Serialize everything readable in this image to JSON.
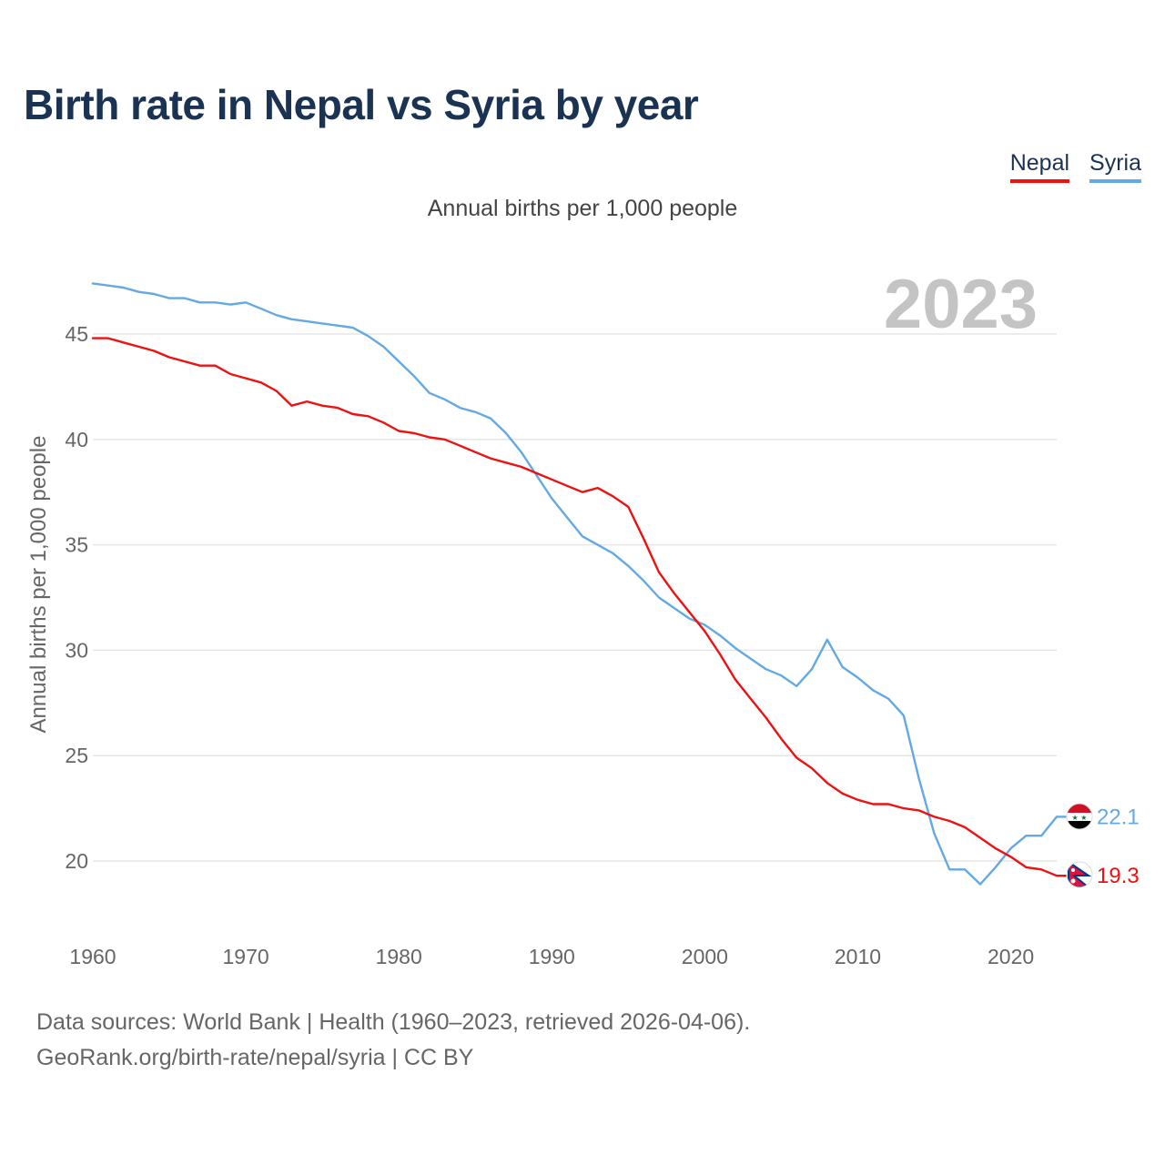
{
  "title": "Birth rate in Nepal vs Syria by year",
  "subtitle": "Annual births per 1,000 people",
  "legend": [
    {
      "label": "Nepal",
      "color": "#ee1111"
    },
    {
      "label": "Syria",
      "color": "#64a8e4"
    }
  ],
  "footer": {
    "line1": "Data sources: World Bank | Health (1960–2023, retrieved 2026-04-06).",
    "line2": "GeoRank.org/birth-rate/nepal/syria | CC BY"
  },
  "chart_data": {
    "type": "line",
    "title": "Birth rate in Nepal vs Syria by year",
    "ylabel": "Annual births per 1,000 people",
    "xlabel": "",
    "year_label": "2023",
    "xlim": [
      1960,
      2023
    ],
    "ylim": [
      17,
      48
    ],
    "x_ticks": [
      "1960",
      "1970",
      "1980",
      "1990",
      "2000",
      "2010",
      "2020"
    ],
    "y_ticks": [
      "20",
      "25",
      "30",
      "35",
      "40",
      "45"
    ],
    "grid": true,
    "x": [
      1960,
      1961,
      1962,
      1963,
      1964,
      1965,
      1966,
      1967,
      1968,
      1969,
      1970,
      1971,
      1972,
      1973,
      1974,
      1975,
      1976,
      1977,
      1978,
      1979,
      1980,
      1981,
      1982,
      1983,
      1984,
      1985,
      1986,
      1987,
      1988,
      1989,
      1990,
      1991,
      1992,
      1993,
      1994,
      1995,
      1996,
      1997,
      1998,
      1999,
      2000,
      2001,
      2002,
      2003,
      2004,
      2005,
      2006,
      2007,
      2008,
      2009,
      2010,
      2011,
      2012,
      2013,
      2014,
      2015,
      2016,
      2017,
      2018,
      2019,
      2020,
      2021,
      2022,
      2023
    ],
    "series": [
      {
        "name": "Nepal",
        "color": "#ee1111",
        "end_label": "19.3",
        "values": [
          44.8,
          44.8,
          44.6,
          44.4,
          44.2,
          43.9,
          43.7,
          43.5,
          43.5,
          43.1,
          42.9,
          42.7,
          42.3,
          41.6,
          41.8,
          41.6,
          41.5,
          41.2,
          41.1,
          40.8,
          40.4,
          40.3,
          40.1,
          40.0,
          39.7,
          39.4,
          39.1,
          38.9,
          38.7,
          38.4,
          38.1,
          37.8,
          37.5,
          37.7,
          37.3,
          36.8,
          35.3,
          33.7,
          32.7,
          31.8,
          30.9,
          29.8,
          28.6,
          27.7,
          26.8,
          25.8,
          24.9,
          24.4,
          23.7,
          23.2,
          22.9,
          22.7,
          22.7,
          22.5,
          22.4,
          22.1,
          21.9,
          21.6,
          21.1,
          20.6,
          20.2,
          19.7,
          19.6,
          19.3
        ]
      },
      {
        "name": "Syria",
        "color": "#64a8e4",
        "end_label": "22.1",
        "values": [
          47.4,
          47.3,
          47.2,
          47.0,
          46.9,
          46.7,
          46.7,
          46.5,
          46.5,
          46.4,
          46.5,
          46.2,
          45.9,
          45.7,
          45.6,
          45.5,
          45.4,
          45.3,
          44.9,
          44.4,
          43.7,
          43.0,
          42.2,
          41.9,
          41.5,
          41.3,
          41.0,
          40.3,
          39.4,
          38.3,
          37.2,
          36.3,
          35.4,
          35.0,
          34.6,
          34.0,
          33.3,
          32.5,
          32.0,
          31.5,
          31.2,
          30.7,
          30.1,
          29.6,
          29.1,
          28.8,
          28.3,
          29.1,
          30.5,
          29.2,
          28.7,
          28.1,
          27.7,
          26.9,
          23.9,
          21.3,
          19.6,
          19.6,
          18.9,
          19.7,
          20.6,
          21.2,
          21.2,
          22.1
        ]
      }
    ]
  }
}
